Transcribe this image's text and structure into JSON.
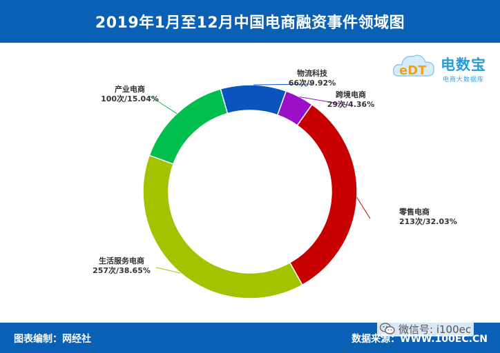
{
  "header": {
    "title": "2019年1月至12月中国电商融资事件领域图"
  },
  "footer": {
    "left_text": "图表编制：网经社",
    "right_text": "数据来源：WWW.100EC.CN"
  },
  "watermark": {
    "text": "微信号: i100ec"
  },
  "logo": {
    "text": "电数宝",
    "subtitle": "电商大数据库",
    "badge": "eDT"
  },
  "colors": {
    "header_bg": "#0a60b5",
    "slices": [
      "#0a55bd",
      "#9b0fc7",
      "#c80000",
      "#a2c400",
      "#00bf4f"
    ]
  },
  "chart_data": {
    "type": "pie",
    "donut": true,
    "slices": [
      {
        "name": "物流科技",
        "count_label": "66次/9.92%",
        "value": 66,
        "percent": 9.92
      },
      {
        "name": "跨境电商",
        "count_label": "29次/4.36%",
        "value": 29,
        "percent": 4.36
      },
      {
        "name": "零售电商",
        "count_label": "213次/32.03%",
        "value": 213,
        "percent": 32.03
      },
      {
        "name": "生活服务电商",
        "count_label": "257次/38.65%",
        "value": 257,
        "percent": 38.65
      },
      {
        "name": "产业电商",
        "count_label": "100次/15.04%",
        "value": 100,
        "percent": 15.04
      }
    ]
  }
}
